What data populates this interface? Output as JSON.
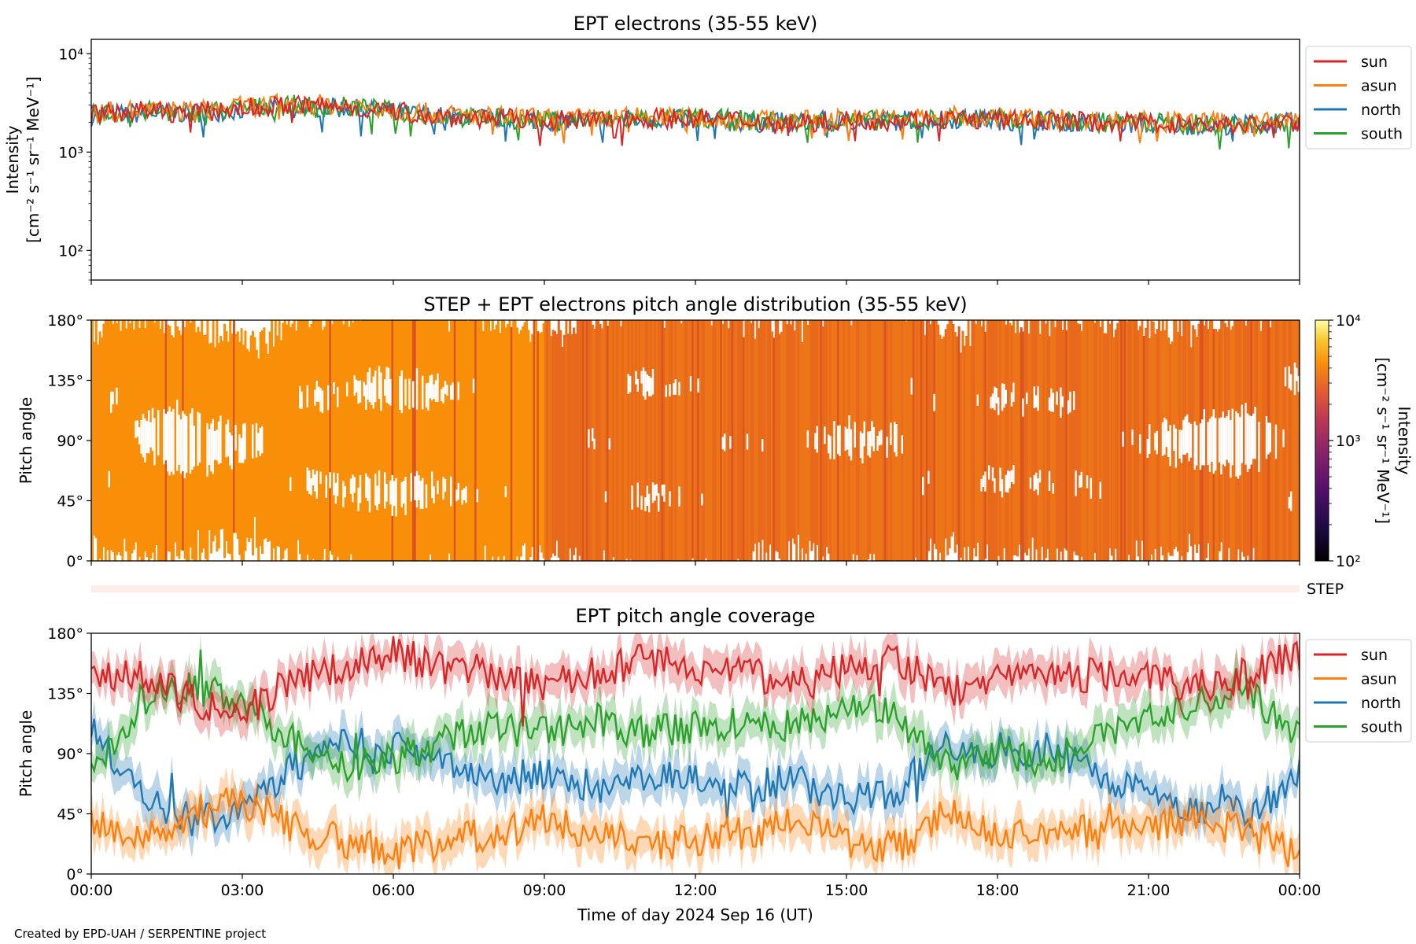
{
  "footer": "Created by EPD-UAH / SERPENTINE project",
  "x_axis": {
    "label": "Time of day 2024 Sep 16 (UT)",
    "ticks": [
      "00:00",
      "03:00",
      "06:00",
      "09:00",
      "12:00",
      "15:00",
      "18:00",
      "21:00",
      "00:00"
    ],
    "range_hours": [
      0,
      24
    ]
  },
  "colors": {
    "sun": "#d62728",
    "asun": "#ff7f0e",
    "north": "#1f77b4",
    "south": "#2ca02c",
    "step_band": "#fdeee9"
  },
  "chart_data": [
    {
      "type": "line",
      "title": "EPT electrons (35-55 keV)",
      "ylabel_line1": "Intensity",
      "ylabel_line2": "[cm⁻² s⁻¹ sr⁻¹ MeV⁻¹]",
      "yscale": "log",
      "ylim": [
        50,
        14000
      ],
      "y_tick_labels": [
        "10²",
        "10³",
        "10⁴"
      ],
      "y_tick_values": [
        100,
        1000,
        10000
      ],
      "legend_placement": "outside-right",
      "series": [
        {
          "name": "sun",
          "color": "#d62728",
          "x": [
            0,
            1,
            2,
            3,
            4,
            5,
            6,
            7,
            8,
            9,
            10,
            11,
            12,
            13,
            14,
            15,
            16,
            17,
            18,
            19,
            20,
            21,
            22,
            23,
            24
          ],
          "y": [
            2400,
            2600,
            2500,
            2800,
            3000,
            2900,
            2600,
            2300,
            2200,
            2100,
            2100,
            2200,
            2200,
            2100,
            2000,
            2100,
            2100,
            2200,
            2100,
            2100,
            2000,
            2000,
            1900,
            1900,
            2000
          ]
        },
        {
          "name": "asun",
          "color": "#ff7f0e",
          "x": [
            0,
            1,
            2,
            3,
            4,
            5,
            6,
            7,
            8,
            9,
            10,
            11,
            12,
            13,
            14,
            15,
            16,
            17,
            18,
            19,
            20,
            21,
            22,
            23,
            24
          ],
          "y": [
            2500,
            2700,
            2600,
            2900,
            3100,
            3000,
            2700,
            2400,
            2300,
            2200,
            2200,
            2300,
            2200,
            2100,
            2100,
            2200,
            2200,
            2300,
            2200,
            2200,
            2100,
            2100,
            2000,
            2000,
            2100
          ]
        },
        {
          "name": "north",
          "color": "#1f77b4",
          "x": [
            0,
            1,
            2,
            3,
            4,
            5,
            6,
            7,
            8,
            9,
            10,
            11,
            12,
            13,
            14,
            15,
            16,
            17,
            18,
            19,
            20,
            21,
            22,
            23,
            24
          ],
          "y": [
            2300,
            2500,
            2500,
            2700,
            2900,
            2800,
            2500,
            2300,
            2200,
            2100,
            2100,
            2200,
            2100,
            2000,
            2000,
            2100,
            2100,
            2200,
            2100,
            2100,
            2000,
            1900,
            1900,
            1900,
            2000
          ]
        },
        {
          "name": "south",
          "color": "#2ca02c",
          "x": [
            0,
            1,
            2,
            3,
            4,
            5,
            6,
            7,
            8,
            9,
            10,
            11,
            12,
            13,
            14,
            15,
            16,
            17,
            18,
            19,
            20,
            21,
            22,
            23,
            24
          ],
          "y": [
            2400,
            2600,
            2500,
            2800,
            3000,
            2900,
            2600,
            2300,
            2200,
            2100,
            2100,
            2200,
            2200,
            2100,
            2000,
            2100,
            2100,
            2200,
            2200,
            2100,
            2000,
            2000,
            1900,
            1900,
            2000
          ]
        }
      ]
    },
    {
      "type": "heatmap",
      "title": "STEP + EPT electrons pitch angle distribution (35-55 keV)",
      "ylabel": "Pitch angle",
      "ylim": [
        0,
        180
      ],
      "y_tick_labels": [
        "0°",
        "45°",
        "90°",
        "135°",
        "180°"
      ],
      "y_tick_values": [
        0,
        45,
        90,
        135,
        180
      ],
      "colorbar": {
        "label_line1": "Intensity",
        "label_line2": "[cm⁻² s⁻¹ sr⁻¹ MeV⁻¹]",
        "scale": "log",
        "range": [
          100,
          10000
        ],
        "tick_labels": [
          "10²",
          "10³",
          "10⁴"
        ],
        "tick_values": [
          100,
          1000,
          10000
        ]
      },
      "dominant_intensity": 2500,
      "step_band_label": "STEP"
    },
    {
      "type": "line",
      "title": "EPT pitch angle coverage",
      "ylabel": "Pitch angle",
      "ylim": [
        0,
        180
      ],
      "y_tick_labels": [
        "0°",
        "45°",
        "90°",
        "135°",
        "180°"
      ],
      "y_tick_values": [
        0,
        45,
        90,
        135,
        180
      ],
      "legend_placement": "outside-right",
      "series": [
        {
          "name": "sun",
          "color": "#d62728",
          "x": [
            0,
            1,
            2,
            3,
            4,
            5,
            6,
            7,
            8,
            9,
            10,
            11,
            12,
            13,
            14,
            15,
            16,
            17,
            18,
            19,
            20,
            21,
            22,
            23,
            24
          ],
          "y": [
            145,
            150,
            130,
            120,
            145,
            155,
            165,
            155,
            150,
            140,
            150,
            160,
            155,
            150,
            140,
            155,
            160,
            135,
            150,
            145,
            150,
            145,
            140,
            150,
            165
          ]
        },
        {
          "name": "asun",
          "color": "#ff7f0e",
          "x": [
            0,
            1,
            2,
            3,
            4,
            5,
            6,
            7,
            8,
            9,
            10,
            11,
            12,
            13,
            14,
            15,
            16,
            17,
            18,
            19,
            20,
            21,
            22,
            23,
            24
          ],
          "y": [
            40,
            30,
            45,
            55,
            35,
            25,
            15,
            25,
            30,
            40,
            30,
            20,
            25,
            30,
            40,
            25,
            20,
            45,
            30,
            35,
            30,
            35,
            40,
            30,
            20
          ]
        },
        {
          "name": "north",
          "color": "#1f77b4",
          "x": [
            0,
            1,
            2,
            3,
            4,
            5,
            6,
            7,
            8,
            9,
            10,
            11,
            12,
            13,
            14,
            15,
            16,
            17,
            18,
            19,
            20,
            21,
            22,
            23,
            24
          ],
          "y": [
            110,
            60,
            40,
            50,
            80,
            100,
            95,
            80,
            70,
            75,
            65,
            75,
            70,
            65,
            70,
            55,
            60,
            100,
            90,
            95,
            75,
            60,
            50,
            45,
            75
          ]
        },
        {
          "name": "south",
          "color": "#2ca02c",
          "x": [
            0,
            1,
            2,
            3,
            4,
            5,
            6,
            7,
            8,
            9,
            10,
            11,
            12,
            13,
            14,
            15,
            16,
            17,
            18,
            19,
            20,
            21,
            22,
            23,
            24
          ],
          "y": [
            70,
            130,
            140,
            130,
            100,
            80,
            85,
            100,
            110,
            105,
            115,
            105,
            110,
            115,
            110,
            125,
            120,
            80,
            90,
            85,
            105,
            120,
            130,
            135,
            105
          ]
        }
      ]
    }
  ]
}
